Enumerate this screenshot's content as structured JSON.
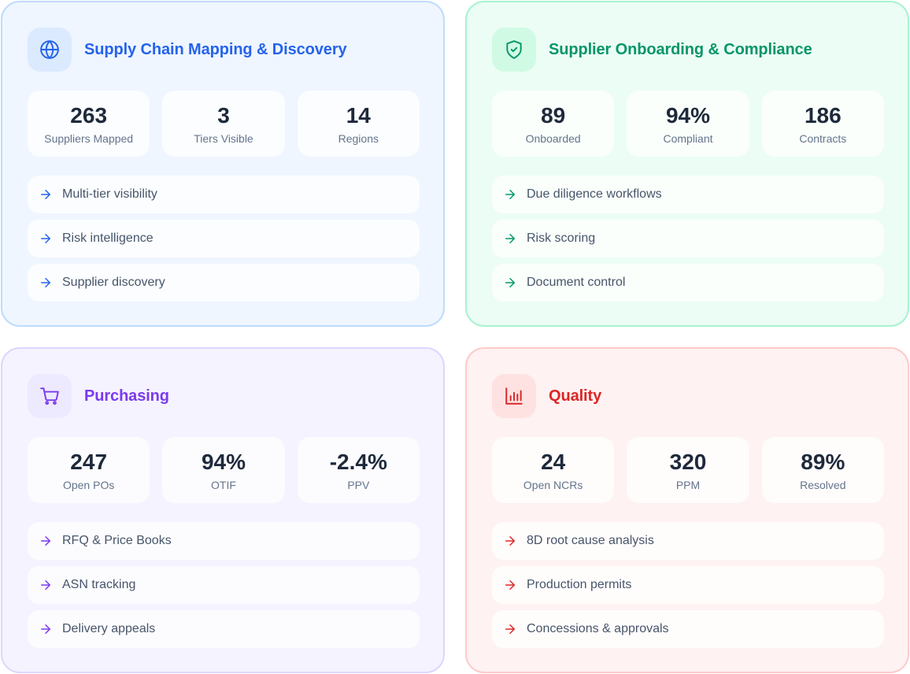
{
  "cards": [
    {
      "title": "Supply Chain Mapping & Discovery",
      "icon": "globe-icon",
      "accent": "#2563eb",
      "stats": [
        {
          "value": "263",
          "label": "Suppliers Mapped"
        },
        {
          "value": "3",
          "label": "Tiers Visible"
        },
        {
          "value": "14",
          "label": "Regions"
        }
      ],
      "features": [
        "Multi-tier visibility",
        "Risk intelligence",
        "Supplier discovery"
      ]
    },
    {
      "title": "Supplier Onboarding & Compliance",
      "icon": "shield-check-icon",
      "accent": "#059669",
      "stats": [
        {
          "value": "89",
          "label": "Onboarded"
        },
        {
          "value": "94%",
          "label": "Compliant"
        },
        {
          "value": "186",
          "label": "Contracts"
        }
      ],
      "features": [
        "Due diligence workflows",
        "Risk scoring",
        "Document control"
      ]
    },
    {
      "title": "Purchasing",
      "icon": "shopping-cart-icon",
      "accent": "#7c3aed",
      "stats": [
        {
          "value": "247",
          "label": "Open POs"
        },
        {
          "value": "94%",
          "label": "OTIF"
        },
        {
          "value": "-2.4%",
          "label": "PPV"
        }
      ],
      "features": [
        "RFQ & Price Books",
        "ASN tracking",
        "Delivery appeals"
      ]
    },
    {
      "title": "Quality",
      "icon": "bar-chart-icon",
      "accent": "#dc2626",
      "stats": [
        {
          "value": "24",
          "label": "Open NCRs"
        },
        {
          "value": "320",
          "label": "PPM"
        },
        {
          "value": "89%",
          "label": "Resolved"
        }
      ],
      "features": [
        "8D root cause analysis",
        "Production permits",
        "Concessions & approvals"
      ]
    }
  ]
}
